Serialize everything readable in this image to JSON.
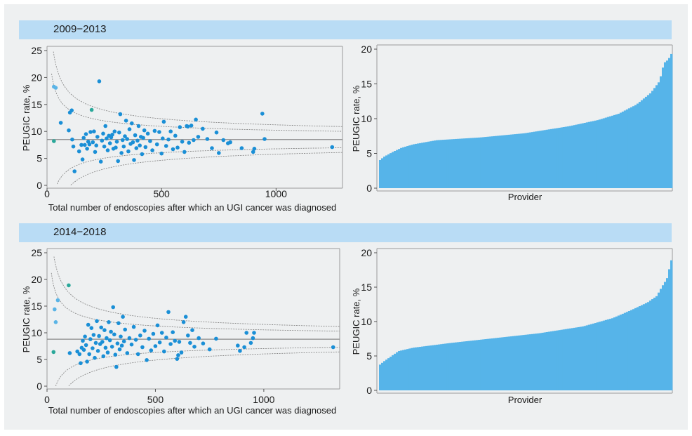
{
  "chart_data": [
    {
      "period": "2009−2013",
      "type": "scatter",
      "ylabel": "PEUGIC rate, %",
      "xlabel": "Total number of endoscopies after which an UGI cancer was diagnosed",
      "xlim": [
        0,
        1290
      ],
      "ylim": [
        0,
        25
      ],
      "xticks": [
        "0",
        "500",
        "1000"
      ],
      "yticks": [
        "0",
        "5",
        "10",
        "15",
        "20",
        "25"
      ],
      "mean": 8.5,
      "colors": {
        "point": "#1a8fd6",
        "point_light": "#5ab4e6",
        "point_teal": "#2aa89a",
        "mean_line": "#8a8a8a",
        "limit": "#8a8a8a"
      },
      "points": [
        [
          30,
          8.2
        ],
        [
          30,
          18.3
        ],
        [
          38,
          18.1
        ],
        [
          60,
          11.6
        ],
        [
          95,
          10.2
        ],
        [
          100,
          13.5
        ],
        [
          108,
          13.9
        ],
        [
          110,
          8.5
        ],
        [
          115,
          7.2
        ],
        [
          120,
          2.6
        ],
        [
          140,
          6.3
        ],
        [
          150,
          7.5
        ],
        [
          155,
          4.8
        ],
        [
          160,
          8.8
        ],
        [
          165,
          7.5
        ],
        [
          170,
          9.5
        ],
        [
          175,
          6.8
        ],
        [
          180,
          8.1
        ],
        [
          185,
          7.6
        ],
        [
          190,
          9.9
        ],
        [
          195,
          14.0
        ],
        [
          200,
          8.0
        ],
        [
          205,
          10.0
        ],
        [
          210,
          6.2
        ],
        [
          215,
          7.4
        ],
        [
          220,
          9.0
        ],
        [
          228,
          19.3
        ],
        [
          235,
          4.4
        ],
        [
          240,
          8.3
        ],
        [
          245,
          9.6
        ],
        [
          250,
          7.2
        ],
        [
          255,
          11.0
        ],
        [
          260,
          8.7
        ],
        [
          265,
          6.5
        ],
        [
          270,
          9.2
        ],
        [
          275,
          7.8
        ],
        [
          280,
          8.9
        ],
        [
          285,
          9.4
        ],
        [
          290,
          6.8
        ],
        [
          295,
          10.0
        ],
        [
          300,
          7.0
        ],
        [
          305,
          8.1
        ],
        [
          310,
          4.5
        ],
        [
          315,
          9.8
        ],
        [
          320,
          13.2
        ],
        [
          325,
          6.0
        ],
        [
          330,
          8.4
        ],
        [
          335,
          7.2
        ],
        [
          340,
          9.1
        ],
        [
          345,
          12.0
        ],
        [
          350,
          8.6
        ],
        [
          355,
          6.3
        ],
        [
          360,
          10.4
        ],
        [
          365,
          7.7
        ],
        [
          370,
          11.5
        ],
        [
          375,
          8.0
        ],
        [
          380,
          4.7
        ],
        [
          385,
          9.3
        ],
        [
          390,
          6.9
        ],
        [
          395,
          8.3
        ],
        [
          400,
          11.0
        ],
        [
          405,
          7.4
        ],
        [
          410,
          9.0
        ],
        [
          415,
          5.8
        ],
        [
          420,
          8.8
        ],
        [
          425,
          10.2
        ],
        [
          430,
          7.1
        ],
        [
          440,
          9.6
        ],
        [
          450,
          8.2
        ],
        [
          460,
          6.5
        ],
        [
          470,
          10.1
        ],
        [
          480,
          7.6
        ],
        [
          490,
          9.9
        ],
        [
          500,
          5.9
        ],
        [
          505,
          8.7
        ],
        [
          510,
          11.8
        ],
        [
          520,
          7.3
        ],
        [
          530,
          8.5
        ],
        [
          540,
          10.0
        ],
        [
          550,
          6.7
        ],
        [
          560,
          9.2
        ],
        [
          570,
          7.0
        ],
        [
          580,
          10.8
        ],
        [
          590,
          8.1
        ],
        [
          600,
          6.2
        ],
        [
          610,
          11.0
        ],
        [
          615,
          10.9
        ],
        [
          620,
          7.9
        ],
        [
          630,
          11.1
        ],
        [
          640,
          8.4
        ],
        [
          650,
          12.2
        ],
        [
          660,
          9.0
        ],
        [
          680,
          10.5
        ],
        [
          700,
          8.6
        ],
        [
          720,
          6.9
        ],
        [
          740,
          9.8
        ],
        [
          750,
          6.0
        ],
        [
          770,
          8.4
        ],
        [
          790,
          7.8
        ],
        [
          800,
          8.0
        ],
        [
          850,
          6.9
        ],
        [
          900,
          6.2
        ],
        [
          905,
          6.8
        ],
        [
          940,
          13.3
        ],
        [
          950,
          8.6
        ],
        [
          1245,
          7.1
        ]
      ]
    },
    {
      "period": "2009−2013",
      "type": "bar",
      "ylabel": "PEUGIC rate, %",
      "xlabel": "Provider",
      "ylim": [
        0,
        20
      ],
      "yticks": [
        "0",
        "5",
        "10",
        "15",
        "20"
      ],
      "colors": {
        "bar": "#56b4e9"
      },
      "anchors": [
        [
          0,
          0.0
        ],
        [
          0.006,
          4.0
        ],
        [
          0.02,
          4.5
        ],
        [
          0.05,
          5.2
        ],
        [
          0.08,
          5.8
        ],
        [
          0.12,
          6.3
        ],
        [
          0.2,
          6.9
        ],
        [
          0.35,
          7.3
        ],
        [
          0.5,
          7.9
        ],
        [
          0.65,
          8.9
        ],
        [
          0.75,
          9.8
        ],
        [
          0.82,
          10.7
        ],
        [
          0.88,
          12.0
        ],
        [
          0.93,
          13.7
        ],
        [
          0.96,
          15.4
        ],
        [
          0.975,
          18.0
        ],
        [
          0.99,
          18.5
        ],
        [
          1.0,
          19.3
        ]
      ],
      "values": []
    },
    {
      "period": "2014−2018",
      "type": "scatter",
      "ylabel": "PEUGIC rate, %",
      "xlabel": "Total number of endoscopies after which an UGI cancer was diagnosed",
      "xlim": [
        0,
        1350
      ],
      "ylim": [
        0,
        25
      ],
      "xticks": [
        "0",
        "500",
        "1000"
      ],
      "yticks": [
        "0",
        "5",
        "10",
        "15",
        "20",
        "25"
      ],
      "mean": 8.8,
      "colors": {
        "point": "#1a8fd6",
        "point_light": "#5ab4e6",
        "point_teal": "#2aa89a",
        "mean_line": "#8a8a8a",
        "limit": "#8a8a8a"
      },
      "points": [
        [
          30,
          6.4
        ],
        [
          35,
          14.4
        ],
        [
          40,
          12.0
        ],
        [
          50,
          16.1
        ],
        [
          100,
          18.9
        ],
        [
          105,
          6.2
        ],
        [
          140,
          6.5
        ],
        [
          150,
          6.0
        ],
        [
          155,
          4.3
        ],
        [
          160,
          7.2
        ],
        [
          165,
          8.5
        ],
        [
          170,
          6.8
        ],
        [
          175,
          9.3
        ],
        [
          180,
          7.7
        ],
        [
          185,
          4.6
        ],
        [
          190,
          11.5
        ],
        [
          195,
          6.0
        ],
        [
          200,
          8.8
        ],
        [
          205,
          10.9
        ],
        [
          210,
          7.1
        ],
        [
          215,
          9.6
        ],
        [
          220,
          5.3
        ],
        [
          225,
          8.1
        ],
        [
          230,
          12.2
        ],
        [
          235,
          6.6
        ],
        [
          240,
          9.4
        ],
        [
          245,
          7.9
        ],
        [
          250,
          11.0
        ],
        [
          255,
          8.3
        ],
        [
          260,
          5.6
        ],
        [
          265,
          10.5
        ],
        [
          270,
          7.2
        ],
        [
          275,
          9.0
        ],
        [
          280,
          6.3
        ],
        [
          285,
          12.0
        ],
        [
          290,
          8.6
        ],
        [
          295,
          10.2
        ],
        [
          300,
          7.4
        ],
        [
          305,
          14.8
        ],
        [
          310,
          9.7
        ],
        [
          315,
          5.9
        ],
        [
          320,
          3.6
        ],
        [
          325,
          8.0
        ],
        [
          330,
          11.8
        ],
        [
          335,
          6.9
        ],
        [
          340,
          9.3
        ],
        [
          345,
          7.6
        ],
        [
          350,
          13.0
        ],
        [
          355,
          8.4
        ],
        [
          360,
          10.6
        ],
        [
          370,
          6.2
        ],
        [
          380,
          9.0
        ],
        [
          390,
          7.8
        ],
        [
          400,
          11.1
        ],
        [
          410,
          8.7
        ],
        [
          420,
          6.0
        ],
        [
          430,
          9.5
        ],
        [
          440,
          7.3
        ],
        [
          450,
          10.4
        ],
        [
          460,
          4.9
        ],
        [
          470,
          8.9
        ],
        [
          480,
          6.7
        ],
        [
          490,
          9.8
        ],
        [
          500,
          7.5
        ],
        [
          510,
          11.4
        ],
        [
          520,
          8.2
        ],
        [
          530,
          10.0
        ],
        [
          540,
          6.5
        ],
        [
          550,
          9.1
        ],
        [
          560,
          13.9
        ],
        [
          570,
          7.9
        ],
        [
          580,
          10.1
        ],
        [
          590,
          8.5
        ],
        [
          600,
          5.1
        ],
        [
          605,
          5.8
        ],
        [
          610,
          8.3
        ],
        [
          620,
          6.3
        ],
        [
          630,
          12.0
        ],
        [
          640,
          13.0
        ],
        [
          650,
          9.5
        ],
        [
          660,
          8.1
        ],
        [
          670,
          10.5
        ],
        [
          680,
          7.4
        ],
        [
          700,
          9.0
        ],
        [
          720,
          8.0
        ],
        [
          750,
          6.9
        ],
        [
          780,
          8.9
        ],
        [
          880,
          7.6
        ],
        [
          890,
          6.6
        ],
        [
          910,
          7.3
        ],
        [
          920,
          10.0
        ],
        [
          940,
          8.1
        ],
        [
          950,
          9.0
        ],
        [
          955,
          10.0
        ],
        [
          1320,
          7.3
        ]
      ]
    },
    {
      "period": "2014−2018",
      "type": "bar",
      "ylabel": "PEUGIC rate, %",
      "xlabel": "Provider",
      "ylim": [
        0,
        20
      ],
      "yticks": [
        "0",
        "5",
        "10",
        "15",
        "20"
      ],
      "colors": {
        "bar": "#56b4e9"
      },
      "anchors": [
        [
          0,
          0.0
        ],
        [
          0.006,
          3.7
        ],
        [
          0.02,
          4.2
        ],
        [
          0.04,
          4.8
        ],
        [
          0.07,
          5.7
        ],
        [
          0.12,
          6.2
        ],
        [
          0.25,
          6.9
        ],
        [
          0.4,
          7.6
        ],
        [
          0.55,
          8.3
        ],
        [
          0.7,
          9.3
        ],
        [
          0.8,
          10.5
        ],
        [
          0.86,
          11.6
        ],
        [
          0.92,
          12.8
        ],
        [
          0.95,
          13.7
        ],
        [
          0.97,
          15.2
        ],
        [
          0.985,
          16.2
        ],
        [
          1.0,
          18.9
        ]
      ],
      "values": []
    }
  ]
}
